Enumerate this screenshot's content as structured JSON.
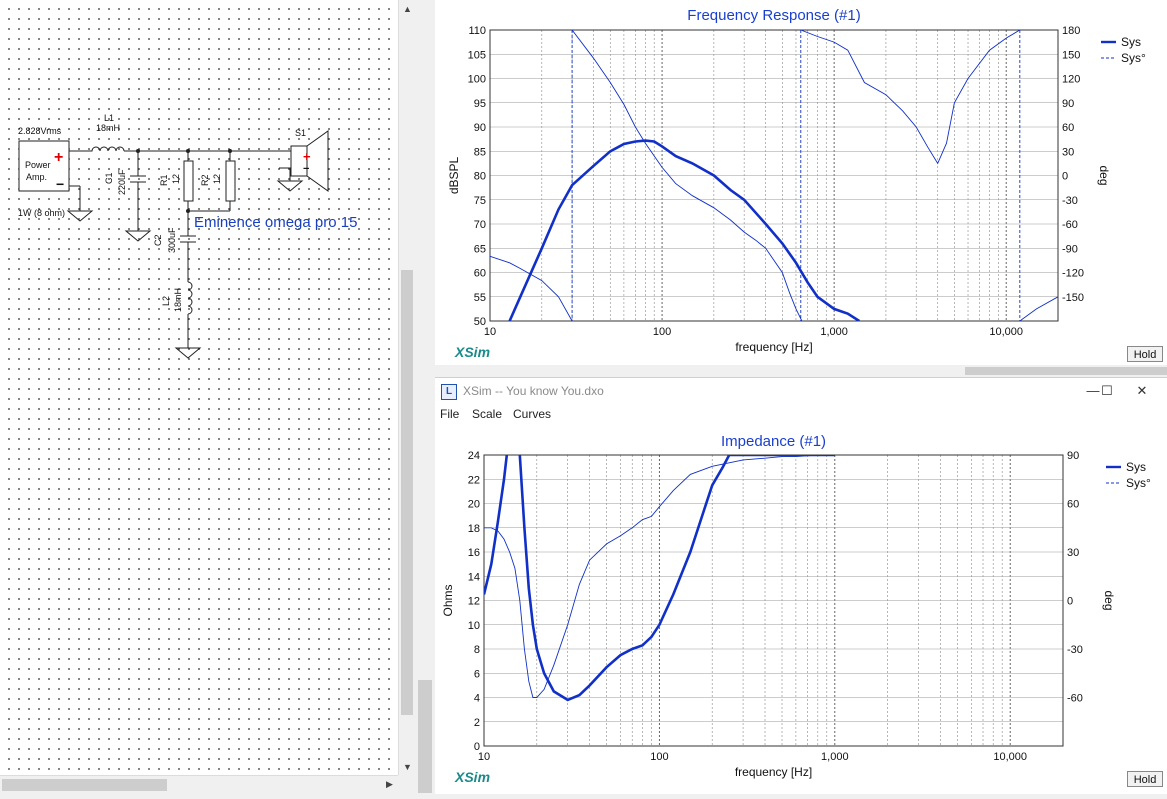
{
  "schematic": {
    "source": {
      "voltage": "2.828Vrms",
      "name_line1": "Power",
      "name_line2": "Amp.",
      "power": "1W (8 ohm)"
    },
    "components": [
      {
        "ref": "L1",
        "value": "18mH"
      },
      {
        "ref": "C1",
        "value": "220uF"
      },
      {
        "ref": "R1",
        "value": "12"
      },
      {
        "ref": "R2",
        "value": "12"
      },
      {
        "ref": "C2",
        "value": "300uF"
      },
      {
        "ref": "L2",
        "value": "18mH"
      },
      {
        "ref": "S1",
        "value": ""
      }
    ],
    "driver_label": "Eminence omega pro 15"
  },
  "freq_response": {
    "title": "Frequency Response (#1)",
    "ylabel": "dBSPL",
    "ylabel_right": "deg",
    "xlabel": "frequency [Hz]",
    "brand": "XSim",
    "hold_label": "Hold",
    "legend": [
      {
        "name": "Sys",
        "style": "solid"
      },
      {
        "name": "Sys°",
        "style": "dashed"
      }
    ],
    "y_ticks": [
      "110",
      "105",
      "100",
      "95",
      "90",
      "85",
      "80",
      "75",
      "70",
      "65",
      "60",
      "55",
      "50"
    ],
    "y2_ticks": [
      "180",
      "150",
      "120",
      "90",
      "60",
      "30",
      "0",
      "-30",
      "-60",
      "-90",
      "-120",
      "-150"
    ],
    "x_ticks": [
      "10",
      "100",
      "1,000",
      "10,000"
    ]
  },
  "window": {
    "title": "XSim -- You know You.dxo",
    "minimize": "—",
    "maximize": "☐",
    "close": "✕",
    "menu": [
      "File",
      "Scale",
      "Curves"
    ]
  },
  "impedance": {
    "title": "Impedance (#1)",
    "ylabel": "Ohms",
    "ylabel_right": "deg",
    "xlabel": "frequency [Hz]",
    "brand": "XSim",
    "hold_label": "Hold",
    "legend": [
      {
        "name": "Sys",
        "style": "solid"
      },
      {
        "name": "Sys°",
        "style": "dashed"
      }
    ],
    "y_ticks": [
      "24",
      "22",
      "20",
      "18",
      "16",
      "14",
      "12",
      "10",
      "8",
      "6",
      "4",
      "2",
      "0"
    ],
    "y2_ticks": [
      "90",
      "60",
      "30",
      "0",
      "-30",
      "-60"
    ],
    "x_ticks": [
      "10",
      "100",
      "1,000",
      "10,000"
    ]
  },
  "chart_data": [
    {
      "type": "line",
      "title": "Frequency Response (#1)",
      "xlabel": "frequency [Hz]",
      "ylabel": "dBSPL",
      "y2label": "deg",
      "xscale": "log",
      "xlim": [
        10,
        20000
      ],
      "ylim": [
        50,
        110
      ],
      "y2lim": [
        -180,
        180
      ],
      "grid": true,
      "legend_position": "top-right",
      "series": [
        {
          "name": "Sys",
          "axis": "left",
          "x": [
            13,
            15,
            20,
            25,
            30,
            40,
            50,
            60,
            70,
            80,
            90,
            100,
            120,
            150,
            200,
            250,
            300,
            400,
            500,
            600,
            700,
            800,
            1000,
            1200,
            1400
          ],
          "y": [
            50,
            55,
            65,
            73,
            78,
            82,
            85,
            86.5,
            87,
            87.2,
            87,
            86,
            84,
            82.5,
            80,
            77,
            75,
            70,
            66,
            62,
            58,
            55,
            52.5,
            51.5,
            50
          ]
        },
        {
          "name": "Sys°",
          "axis": "right",
          "x": [
            10,
            13,
            15,
            20,
            25,
            30
          ],
          "y": [
            -100,
            -108,
            -115,
            -130,
            -150,
            -180
          ]
        },
        {
          "name": "Sys°",
          "axis": "right",
          "x": [
            30,
            40,
            50,
            60,
            70,
            80,
            100,
            120,
            150,
            200,
            250,
            300,
            350,
            400,
            500,
            550,
            600,
            650
          ],
          "y": [
            180,
            145,
            115,
            88,
            60,
            40,
            10,
            -10,
            -25,
            -40,
            -55,
            -70,
            -80,
            -90,
            -120,
            -145,
            -165,
            -180
          ]
        },
        {
          "name": "Sys°",
          "axis": "right",
          "x": [
            640,
            800,
            1000,
            1200,
            1500,
            2000,
            2500,
            3000,
            3500,
            4000,
            4500,
            5000,
            6000,
            8000,
            10000,
            12000
          ],
          "y": [
            180,
            172,
            165,
            155,
            115,
            100,
            80,
            60,
            35,
            15,
            40,
            90,
            120,
            155,
            170,
            180
          ]
        },
        {
          "name": "Sys°",
          "axis": "right",
          "x": [
            12000,
            15000,
            20000
          ],
          "y": [
            -180,
            -165,
            -150
          ]
        }
      ]
    },
    {
      "type": "line",
      "title": "Impedance (#1)",
      "xlabel": "frequency [Hz]",
      "ylabel": "Ohms",
      "y2label": "deg",
      "xscale": "log",
      "xlim": [
        10,
        20000
      ],
      "ylim": [
        0,
        24
      ],
      "y2lim": [
        -90,
        90
      ],
      "grid": true,
      "legend_position": "top-right",
      "series": [
        {
          "name": "Sys",
          "axis": "left",
          "x": [
            10,
            11,
            12,
            13,
            14,
            15,
            16,
            17,
            18,
            19,
            20,
            22,
            25,
            30,
            35,
            40,
            50,
            60,
            70,
            80,
            90,
            100,
            120,
            150,
            180,
            200,
            230,
            250,
            300,
            400,
            500,
            600,
            700,
            800,
            900,
            1000
          ],
          "y": [
            12.5,
            15,
            18.5,
            22,
            26,
            28,
            24,
            18,
            13,
            10,
            8,
            6,
            4.5,
            3.8,
            4.2,
            5,
            6.5,
            7.5,
            8,
            8.3,
            9,
            10,
            12.5,
            16,
            19.5,
            21.5,
            23,
            24,
            24,
            24,
            24,
            24,
            24,
            24,
            24,
            24
          ]
        },
        {
          "name": "Sys°",
          "axis": "right",
          "x": [
            10,
            11,
            12,
            13,
            14,
            15,
            16,
            17,
            18,
            19,
            20,
            22,
            25,
            30,
            35,
            40,
            50,
            60,
            70,
            80,
            90,
            100,
            120,
            150,
            200,
            300,
            400,
            500,
            600,
            800,
            1000
          ],
          "y": [
            45,
            45,
            43,
            38,
            30,
            20,
            0,
            -30,
            -50,
            -60,
            -60,
            -55,
            -40,
            -15,
            10,
            25,
            35,
            40,
            45,
            50,
            52,
            58,
            68,
            78,
            83,
            87,
            88,
            89,
            89,
            90,
            90
          ]
        }
      ]
    }
  ]
}
